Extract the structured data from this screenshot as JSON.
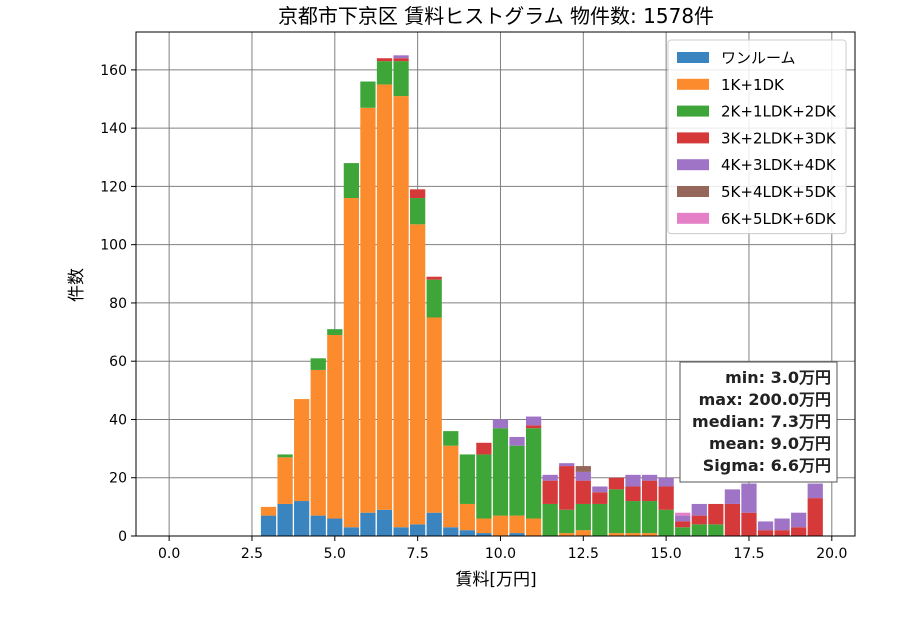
{
  "chart_data": {
    "type": "bar",
    "title": "京都市下京区 賃料ヒストグラム 物件数: 1578件",
    "xlabel": "賃料[万円]",
    "ylabel": "件数",
    "xlim": [
      -1.0,
      20.7
    ],
    "ylim": [
      0,
      173
    ],
    "xticks": [
      "0.0",
      "2.5",
      "5.0",
      "7.5",
      "10.0",
      "12.5",
      "15.0",
      "17.5",
      "20.0"
    ],
    "yticks": [
      "0",
      "20",
      "40",
      "60",
      "80",
      "100",
      "120",
      "140",
      "160"
    ],
    "grid": true,
    "stacked": true,
    "legend_position": "top-right",
    "bin_width": 0.5,
    "x": [
      3.0,
      3.5,
      4.0,
      4.5,
      5.0,
      5.5,
      6.0,
      6.5,
      7.0,
      7.5,
      8.0,
      8.5,
      9.0,
      9.5,
      10.0,
      10.5,
      11.0,
      11.5,
      12.0,
      12.5,
      13.0,
      13.5,
      14.0,
      14.5,
      15.0,
      15.5,
      16.0,
      16.5,
      17.0,
      17.5,
      18.0,
      18.5,
      19.0,
      19.5
    ],
    "series": [
      {
        "name": "ワンルーム",
        "color": "#3a84c0",
        "values": [
          7,
          11,
          12,
          7,
          6,
          3,
          8,
          9,
          3,
          4,
          8,
          3,
          2,
          1,
          0,
          1,
          0,
          0,
          0,
          0,
          0,
          0,
          0,
          0,
          0,
          0,
          0,
          0,
          0,
          0,
          0,
          0,
          0,
          0
        ]
      },
      {
        "name": "1K+1DK",
        "color": "#fb8b2c",
        "values": [
          3,
          16,
          35,
          50,
          63,
          113,
          139,
          146,
          148,
          103,
          67,
          28,
          9,
          5,
          7,
          6,
          6,
          0,
          1,
          2,
          0,
          1,
          1,
          1,
          0,
          0,
          0,
          0,
          0,
          0,
          0,
          0,
          0,
          0
        ]
      },
      {
        "name": "2K+1LDK+2DK",
        "color": "#3ea639",
        "values": [
          0,
          1,
          0,
          4,
          2,
          12,
          9,
          8,
          12,
          9,
          13,
          5,
          17,
          22,
          30,
          24,
          31,
          11,
          8,
          9,
          11,
          15,
          11,
          11,
          9,
          3,
          4,
          4,
          0,
          0,
          0,
          0,
          0,
          0
        ]
      },
      {
        "name": "3K+2LDK+3DK",
        "color": "#d63939",
        "values": [
          0,
          0,
          0,
          0,
          0,
          0,
          0,
          1,
          1,
          3,
          1,
          0,
          0,
          4,
          0,
          0,
          1,
          8,
          15,
          8,
          4,
          4,
          5,
          7,
          8,
          2,
          3,
          7,
          11,
          8,
          2,
          2,
          3,
          13
        ]
      },
      {
        "name": "4K+3LDK+4DK",
        "color": "#9f74c7",
        "values": [
          0,
          0,
          0,
          0,
          0,
          0,
          0,
          0,
          1,
          0,
          0,
          0,
          0,
          0,
          3,
          3,
          3,
          2,
          1,
          3,
          2,
          0,
          4,
          2,
          3,
          2,
          4,
          0,
          5,
          10,
          3,
          4,
          5,
          5
        ]
      },
      {
        "name": "5K+4LDK+5DK",
        "color": "#95665a",
        "values": [
          0,
          0,
          0,
          0,
          0,
          0,
          0,
          0,
          0,
          0,
          0,
          0,
          0,
          0,
          0,
          0,
          0,
          0,
          0,
          2,
          0,
          0,
          0,
          0,
          0,
          0,
          0,
          0,
          0,
          0,
          0,
          0,
          0,
          0
        ]
      },
      {
        "name": "6K+5LDK+6DK",
        "color": "#e580c7",
        "values": [
          0,
          0,
          0,
          0,
          0,
          0,
          0,
          0,
          0,
          0,
          0,
          0,
          0,
          0,
          0,
          0,
          0,
          0,
          0,
          0,
          0,
          0,
          0,
          0,
          0,
          1,
          0,
          0,
          0,
          0,
          0,
          0,
          0,
          0
        ]
      }
    ],
    "stats": [
      "min: 3.0万円",
      "max: 200.0万円",
      "median: 7.3万円",
      "mean: 9.0万円",
      "Sigma: 6.6万円"
    ]
  }
}
